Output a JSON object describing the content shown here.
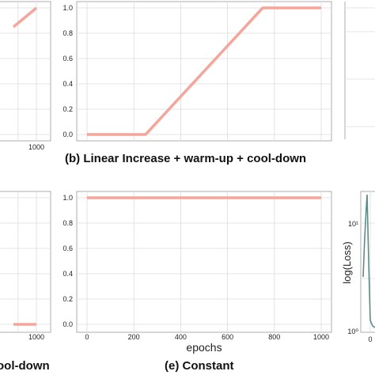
{
  "chart_data": [
    {
      "panel": "a",
      "type": "line",
      "x": [
        750,
        1000
      ],
      "series": [
        {
          "values": [
            0.85,
            1.0
          ]
        }
      ],
      "xlim": [
        0,
        1000
      ],
      "ylim": [
        0,
        1
      ],
      "xticks": [
        "1000"
      ],
      "grid": true,
      "caption": "",
      "visible": "partial"
    },
    {
      "panel": "b",
      "type": "line",
      "x": [
        0,
        250,
        750,
        1000
      ],
      "series": [
        {
          "values": [
            0.0,
            0.0,
            1.0,
            1.0
          ]
        }
      ],
      "xlim": [
        0,
        1000
      ],
      "ylim": [
        0,
        1
      ],
      "yticks": [
        "0.0",
        "0.2",
        "0.4",
        "0.6",
        "0.8",
        "1.0"
      ],
      "grid": true,
      "caption": "(b) Linear Increase + warm-up + cool-down"
    },
    {
      "panel": "d",
      "type": "line",
      "x": [
        750,
        1000
      ],
      "series": [
        {
          "values": [
            0.0,
            0.0
          ]
        }
      ],
      "xlim": [
        0,
        1000
      ],
      "ylim": [
        0,
        1
      ],
      "xticks": [
        "1000"
      ],
      "grid": true,
      "caption": "ool-down",
      "visible": "partial"
    },
    {
      "panel": "e",
      "type": "line",
      "x": [
        0,
        1000
      ],
      "series": [
        {
          "values": [
            1.0,
            1.0
          ]
        }
      ],
      "xlim": [
        0,
        1000
      ],
      "ylim": [
        0,
        1
      ],
      "xticks": [
        "0",
        "200",
        "400",
        "600",
        "800",
        "1000"
      ],
      "yticks": [
        "0.0",
        "0.2",
        "0.4",
        "0.6",
        "0.8",
        "1.0"
      ],
      "xlabel": "epochs",
      "grid": true,
      "caption": "(e) Constant"
    },
    {
      "panel": "f",
      "type": "line",
      "ylabel": "log(Loss)",
      "yscale": "log",
      "yticks": [
        "10⁰",
        "10¹"
      ],
      "xticks": [
        "0"
      ],
      "grid": true,
      "visible": "partial"
    }
  ],
  "colors": {
    "line": "#f4a69c",
    "loss_line": "#5f8a8a",
    "grid": "#dcdcdc",
    "axis": "#9a9a9a",
    "text": "#222222"
  }
}
